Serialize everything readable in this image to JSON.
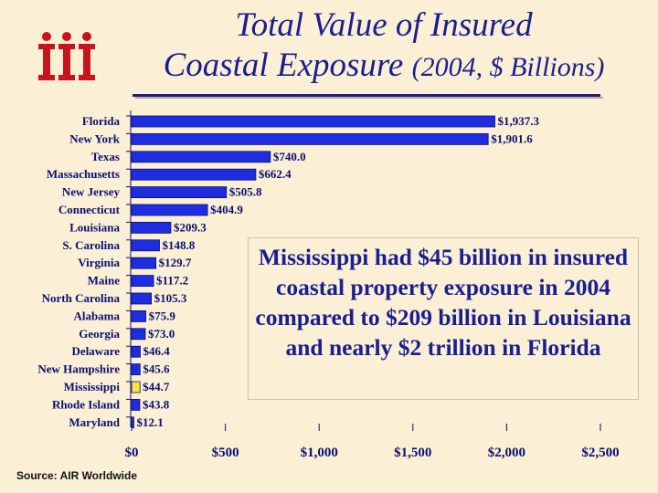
{
  "title": {
    "line1": "Total Value of Insured",
    "line2_main": "Coastal Exposure",
    "line2_sub": "(2004, $ Billions)"
  },
  "logo": {
    "text": "iii"
  },
  "colors": {
    "bar": "#1f2de0",
    "highlight": "#f6e63b",
    "text": "#1a1f8f",
    "background": "#fbefd5"
  },
  "chart_data": {
    "type": "bar",
    "orientation": "horizontal",
    "title": "Total Value of Insured Coastal Exposure (2004, $ Billions)",
    "xlabel": "",
    "ylabel": "",
    "xlim": [
      0,
      2500
    ],
    "x_ticks": [
      0,
      500,
      1000,
      1500,
      2000,
      2500
    ],
    "x_tick_labels": [
      "$0",
      "$500",
      "$1,000",
      "$1,500",
      "$2,000",
      "$2,500"
    ],
    "categories": [
      "Florida",
      "New York",
      "Texas",
      "Massachusetts",
      "New Jersey",
      "Connecticut",
      "Louisiana",
      "S. Carolina",
      "Virginia",
      "Maine",
      "North Carolina",
      "Alabama",
      "Georgia",
      "Delaware",
      "New Hampshire",
      "Mississippi",
      "Rhode Island",
      "Maryland"
    ],
    "values": [
      1937.3,
      1901.6,
      740.0,
      662.4,
      505.8,
      404.9,
      209.3,
      148.8,
      129.7,
      117.2,
      105.3,
      75.9,
      73.0,
      46.4,
      45.6,
      44.7,
      43.8,
      12.1
    ],
    "value_labels": [
      "$1,937.3",
      "$1,901.6",
      "$740.0",
      "$662.4",
      "$505.8",
      "$404.9",
      "$209.3",
      "$148.8",
      "$129.7",
      "$117.2",
      "$105.3",
      "$75.9",
      "$73.0",
      "$46.4",
      "$45.6",
      "$44.7",
      "$43.8",
      "$12.1"
    ],
    "highlighted_category": "Mississippi",
    "grid": false
  },
  "annotation": {
    "text": "Mississippi had $45 billion in insured coastal property exposure in 2004 compared to $209 billion in Louisiana and nearly $2 trillion in Florida"
  },
  "source": "Source: AIR Worldwide"
}
